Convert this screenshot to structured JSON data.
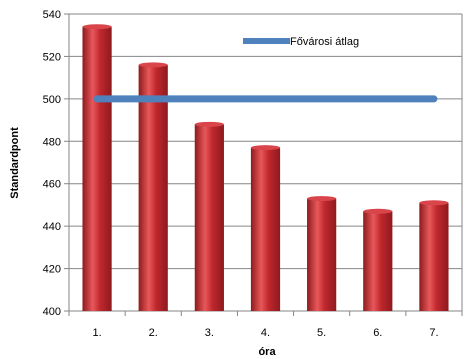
{
  "chart_data": {
    "type": "bar",
    "categories": [
      "1.",
      "2.",
      "3.",
      "4.",
      "5.",
      "6.",
      "7."
    ],
    "series": [
      {
        "values": [
          534,
          516,
          488,
          477,
          453,
          447,
          451
        ]
      }
    ],
    "reference_line": {
      "name": "Fővárosi átlag",
      "value": 500
    },
    "xlabel": "óra",
    "ylabel": "Standardpont",
    "ylim": [
      400,
      540
    ],
    "yticks": [
      400,
      420,
      440,
      460,
      480,
      500,
      520,
      540
    ],
    "grid": true,
    "legend": "top-right",
    "colors": {
      "bar": "#c0282d",
      "bar_light": "#e8585a",
      "bar_dark": "#8e1a1e",
      "line": "#4f81bd",
      "grid": "#868686"
    }
  }
}
